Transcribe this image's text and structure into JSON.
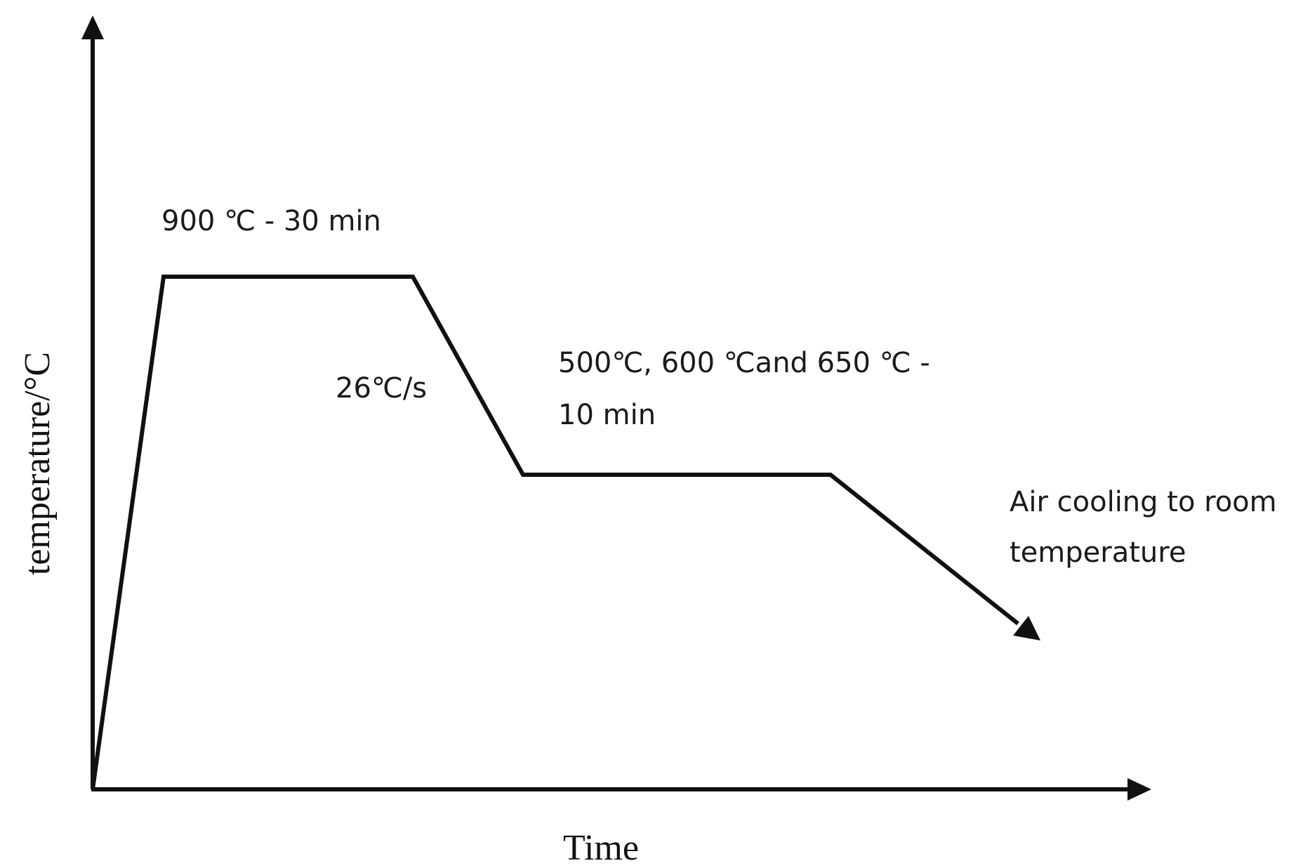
{
  "diagram": {
    "labels": {
      "y_axis": "temperature/°C",
      "x_axis": "Time",
      "austenitize": "900 ℃ - 30 min",
      "cooling_rate": "26℃/s",
      "isothermal_line1": "500℃, 600 ℃and 650 ℃ -",
      "isothermal_line2": "10 min",
      "final_line1": "Air cooling to room",
      "final_line2": "temperature"
    },
    "colors": {
      "stroke": "#111111",
      "text": "#1a1a1a",
      "background": "#ffffff"
    }
  }
}
